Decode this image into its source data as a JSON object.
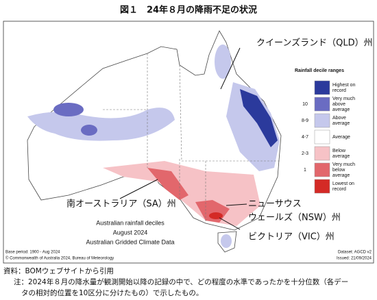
{
  "title": "図１　24年８月の降雨不足の状況",
  "callouts": {
    "qld": "クイーンズランド（QLD）州",
    "sa": "南オーストラリア（SA）州",
    "nsw": [
      "ニューサウス",
      "ウェールズ（NSW）州"
    ],
    "vic": "ビクトリア（VIC）州"
  },
  "legend": {
    "title": "Rainfall decile ranges",
    "items": [
      {
        "label": "Highest on record",
        "color": "#2b3a9c"
      },
      {
        "range": "10",
        "label": "Very much above average",
        "color": "#6a6cc2"
      },
      {
        "range": "8-9",
        "label": "Above average",
        "color": "#c5c8ec"
      },
      {
        "range": "4-7",
        "label": "Average",
        "color": "#ffffff"
      },
      {
        "range": "2-3",
        "label": "Below average",
        "color": "#f6c2c6"
      },
      {
        "range": "1",
        "label": "Very much below average",
        "color": "#e2676c"
      },
      {
        "label": "Lowest on record",
        "color": "#d42a26"
      }
    ]
  },
  "map_caption": [
    "Australian rainfall deciles",
    "August 2024",
    "Australian Gridded Climate Data"
  ],
  "map_footer": {
    "base_period": "Base period: 1900 - Aug 2024",
    "dataset": "Dataset: AGCD v2",
    "copyright": "© Commonwealth of Australia 2024, Bureau of Meteorology",
    "issued": "Issued: 21/09/2024"
  },
  "source": "資料：BOMウェブサイトから引用",
  "note": [
    "注：2024年８月の降水量が観測開始以降の記録の中で、どの程度の水準であったかを十分位数（各デー",
    "タの相対的位置を10区分に分けたもの）で示したもの。"
  ]
}
